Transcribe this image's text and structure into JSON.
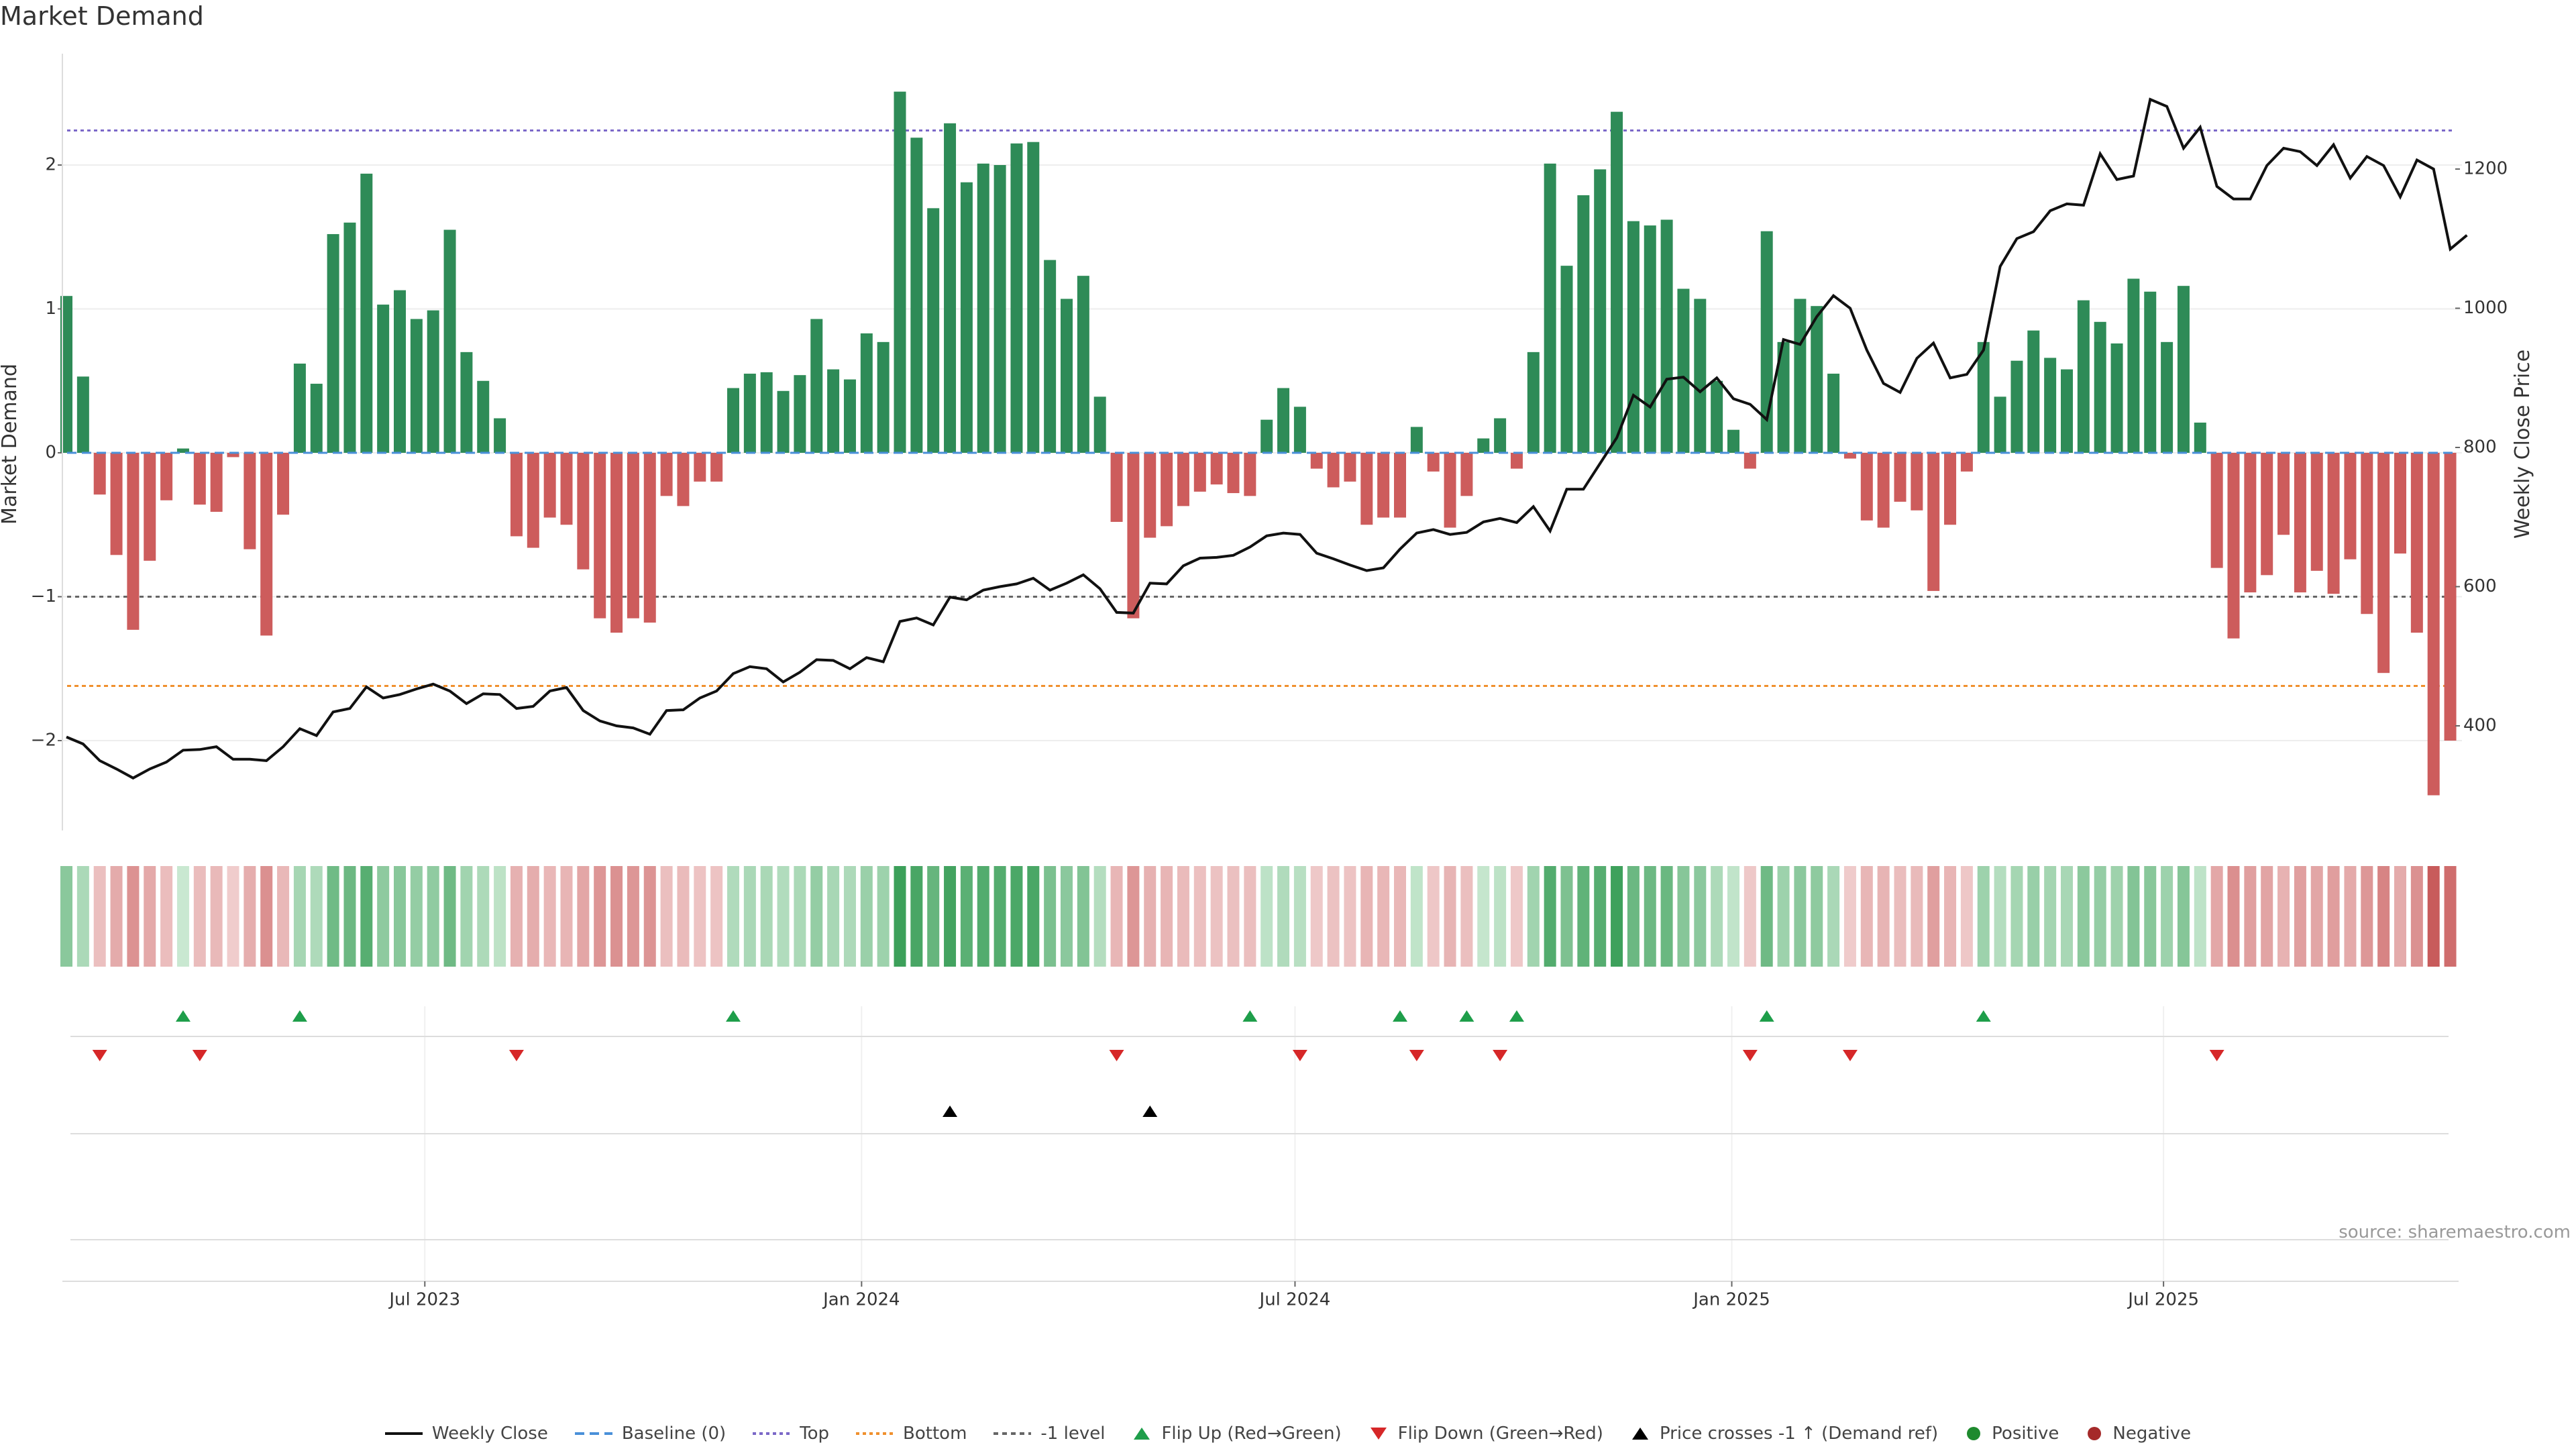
{
  "title": "Market Demand",
  "source_text": "source: sharemaestro.com",
  "colors": {
    "positive_bar": "#2e8b57",
    "negative_bar": "#cd5c5c",
    "price_line": "#111111",
    "top_line": "#7b68c8",
    "bottom_line": "#f0902e",
    "minus1_line": "#666666",
    "baseline": "#4a90d9",
    "flip_up": "#1e9e4a",
    "flip_down": "#d62728",
    "cross_marker": "#000000",
    "grid": "#eeeeee"
  },
  "chart_data": {
    "type": "bar",
    "title": "Market Demand",
    "ylabel": "Market Demand",
    "y2label": "Weekly Close Price",
    "ylim": [
      -2.6,
      2.7
    ],
    "y2lim": [
      290,
      1330
    ],
    "yticks": [
      2,
      1,
      0,
      -1,
      -2
    ],
    "ytick_labels": [
      "2",
      "1",
      "0",
      "−1",
      "−2"
    ],
    "y2ticks": [
      1200,
      1000,
      800,
      600,
      400
    ],
    "y2tick_labels": [
      "1200",
      "1000",
      "800",
      "600",
      "400"
    ],
    "x_tick_labels": [
      "Jul 2023",
      "Jan 2024",
      "Jul 2024",
      "Jan 2025",
      "Jul 2025"
    ],
    "x_tick_weeks": [
      21.5,
      47.7,
      73.7,
      99.9,
      125.8
    ],
    "reference_lines": {
      "top": 2.24,
      "bottom": -1.62,
      "minus1": -1.0,
      "baseline": 0
    },
    "demand": [
      1.09,
      0.53,
      -0.29,
      -0.71,
      -1.23,
      -0.75,
      -0.33,
      0.03,
      -0.36,
      -0.41,
      -0.03,
      -0.67,
      -1.27,
      -0.43,
      0.62,
      0.48,
      1.52,
      1.6,
      1.94,
      1.03,
      1.13,
      0.93,
      0.99,
      1.55,
      0.7,
      0.5,
      0.24,
      -0.58,
      -0.66,
      -0.45,
      -0.5,
      -0.81,
      -1.15,
      -1.25,
      -1.15,
      -1.18,
      -0.3,
      -0.37,
      -0.2,
      -0.2,
      0.45,
      0.55,
      0.56,
      0.43,
      0.54,
      0.93,
      0.58,
      0.51,
      0.83,
      0.77,
      2.51,
      2.19,
      1.7,
      2.29,
      1.88,
      2.01,
      2.0,
      2.15,
      2.16,
      1.34,
      1.07,
      1.23,
      0.39,
      -0.48,
      -1.15,
      -0.59,
      -0.51,
      -0.37,
      -0.27,
      -0.22,
      -0.28,
      -0.3,
      0.23,
      0.45,
      0.32,
      -0.11,
      -0.24,
      -0.2,
      -0.5,
      -0.45,
      -0.45,
      0.18,
      -0.13,
      -0.52,
      -0.3,
      0.1,
      0.24,
      -0.11,
      0.7,
      2.01,
      1.3,
      1.79,
      1.97,
      2.37,
      1.61,
      1.58,
      1.62,
      1.14,
      1.07,
      0.5,
      0.16,
      -0.11,
      1.54,
      0.77,
      1.07,
      1.02,
      0.55,
      -0.04,
      -0.47,
      -0.52,
      -0.34,
      -0.4,
      -0.96,
      -0.5,
      -0.13,
      0.77,
      0.39,
      0.64,
      0.85,
      0.66,
      0.58,
      1.06,
      0.91,
      0.76,
      1.21,
      1.12,
      0.77,
      1.16,
      0.21,
      -0.8,
      -1.29,
      -0.97,
      -0.85,
      -0.57,
      -0.97,
      -0.82,
      -0.98,
      -0.74,
      -1.12,
      -1.53,
      -0.7,
      -1.25,
      -2.38,
      -2.0
    ],
    "price": [
      {
        "week": 0,
        "close": 384
      },
      {
        "week": 1,
        "close": 374
      },
      {
        "week": 2,
        "close": 350
      },
      {
        "week": 3,
        "close": 338
      },
      {
        "week": 4,
        "close": 325
      },
      {
        "week": 5,
        "close": 338
      },
      {
        "week": 6,
        "close": 348
      },
      {
        "week": 7,
        "close": 365
      },
      {
        "week": 8,
        "close": 366
      },
      {
        "week": 9,
        "close": 370
      },
      {
        "week": 10,
        "close": 352
      },
      {
        "week": 11,
        "close": 352
      },
      {
        "week": 12,
        "close": 350
      },
      {
        "week": 13,
        "close": 370
      },
      {
        "week": 14,
        "close": 396
      },
      {
        "week": 15,
        "close": 386
      },
      {
        "week": 16,
        "close": 420
      },
      {
        "week": 17,
        "close": 425
      },
      {
        "week": 18,
        "close": 456
      },
      {
        "week": 19,
        "close": 440
      },
      {
        "week": 20,
        "close": 445
      },
      {
        "week": 21,
        "close": 453
      },
      {
        "week": 22,
        "close": 460
      },
      {
        "week": 23,
        "close": 450
      },
      {
        "week": 24,
        "close": 432
      },
      {
        "week": 25,
        "close": 446
      },
      {
        "week": 26,
        "close": 445
      },
      {
        "week": 27,
        "close": 425
      },
      {
        "week": 28,
        "close": 428
      },
      {
        "week": 29,
        "close": 450
      },
      {
        "week": 30,
        "close": 455
      },
      {
        "week": 31,
        "close": 422
      },
      {
        "week": 32,
        "close": 407
      },
      {
        "week": 33,
        "close": 400
      },
      {
        "week": 34,
        "close": 397
      },
      {
        "week": 35,
        "close": 388
      },
      {
        "week": 36,
        "close": 422
      },
      {
        "week": 37,
        "close": 423
      },
      {
        "week": 38,
        "close": 440
      },
      {
        "week": 39,
        "close": 450
      },
      {
        "week": 40,
        "close": 475
      },
      {
        "week": 41,
        "close": 485
      },
      {
        "week": 42,
        "close": 482
      },
      {
        "week": 43,
        "close": 463
      },
      {
        "week": 44,
        "close": 477
      },
      {
        "week": 45,
        "close": 495
      },
      {
        "week": 46,
        "close": 494
      },
      {
        "week": 47,
        "close": 482
      },
      {
        "week": 48,
        "close": 498
      },
      {
        "week": 49,
        "close": 492
      },
      {
        "week": 50,
        "close": 550
      },
      {
        "week": 51,
        "close": 555
      },
      {
        "week": 52,
        "close": 545
      },
      {
        "week": 53,
        "close": 585
      },
      {
        "week": 54,
        "close": 581
      },
      {
        "week": 55,
        "close": 595
      },
      {
        "week": 56,
        "close": 600
      },
      {
        "week": 57,
        "close": 604
      },
      {
        "week": 58,
        "close": 612
      },
      {
        "week": 59,
        "close": 595
      },
      {
        "week": 60,
        "close": 605
      },
      {
        "week": 61,
        "close": 617
      },
      {
        "week": 62,
        "close": 597
      },
      {
        "week": 63,
        "close": 563
      },
      {
        "week": 64,
        "close": 562
      },
      {
        "week": 65,
        "close": 605
      },
      {
        "week": 66,
        "close": 604
      },
      {
        "week": 67,
        "close": 630
      },
      {
        "week": 68,
        "close": 641
      },
      {
        "week": 69,
        "close": 642
      },
      {
        "week": 70,
        "close": 645
      },
      {
        "week": 71,
        "close": 657
      },
      {
        "week": 72,
        "close": 673
      },
      {
        "week": 73,
        "close": 677
      },
      {
        "week": 74,
        "close": 675
      },
      {
        "week": 75,
        "close": 648
      },
      {
        "week": 76,
        "close": 640
      },
      {
        "week": 77,
        "close": 631
      },
      {
        "week": 78,
        "close": 623
      },
      {
        "week": 79,
        "close": 627
      },
      {
        "week": 80,
        "close": 654
      },
      {
        "week": 81,
        "close": 677
      },
      {
        "week": 82,
        "close": 682
      },
      {
        "week": 83,
        "close": 675
      },
      {
        "week": 84,
        "close": 678
      },
      {
        "week": 85,
        "close": 693
      },
      {
        "week": 86,
        "close": 698
      },
      {
        "week": 87,
        "close": 692
      },
      {
        "week": 88,
        "close": 715
      },
      {
        "week": 89,
        "close": 680
      },
      {
        "week": 90,
        "close": 740
      },
      {
        "week": 91,
        "close": 740
      },
      {
        "week": 92,
        "close": 777
      },
      {
        "week": 93,
        "close": 814
      },
      {
        "week": 94,
        "close": 875
      },
      {
        "week": 95,
        "close": 858
      },
      {
        "week": 96,
        "close": 898
      },
      {
        "week": 97,
        "close": 901
      },
      {
        "week": 98,
        "close": 880
      },
      {
        "week": 99,
        "close": 900
      },
      {
        "week": 100,
        "close": 870
      },
      {
        "week": 101,
        "close": 862
      },
      {
        "week": 102,
        "close": 840
      },
      {
        "week": 103,
        "close": 955
      },
      {
        "week": 104,
        "close": 948
      },
      {
        "week": 105,
        "close": 988
      },
      {
        "week": 106,
        "close": 1018
      },
      {
        "week": 107,
        "close": 1000
      },
      {
        "week": 108,
        "close": 940
      },
      {
        "week": 109,
        "close": 892
      },
      {
        "week": 110,
        "close": 879
      },
      {
        "week": 111,
        "close": 928
      },
      {
        "week": 112,
        "close": 950
      },
      {
        "week": 113,
        "close": 900
      },
      {
        "week": 114,
        "close": 905
      },
      {
        "week": 115,
        "close": 940
      },
      {
        "week": 116,
        "close": 1060
      },
      {
        "week": 117,
        "close": 1100
      },
      {
        "week": 118,
        "close": 1110
      },
      {
        "week": 119,
        "close": 1140
      },
      {
        "week": 120,
        "close": 1150
      },
      {
        "week": 121,
        "close": 1148
      },
      {
        "week": 122,
        "close": 1222
      },
      {
        "week": 123,
        "close": 1185
      },
      {
        "week": 124,
        "close": 1190
      },
      {
        "week": 125,
        "close": 1300
      },
      {
        "week": 126,
        "close": 1290
      },
      {
        "week": 127,
        "close": 1230
      },
      {
        "week": 128,
        "close": 1260
      },
      {
        "week": 129,
        "close": 1175
      },
      {
        "week": 130,
        "close": 1157
      },
      {
        "week": 131,
        "close": 1157
      },
      {
        "week": 132,
        "close": 1205
      },
      {
        "week": 133,
        "close": 1230
      },
      {
        "week": 134,
        "close": 1225
      },
      {
        "week": 135,
        "close": 1205
      },
      {
        "week": 136,
        "close": 1235
      },
      {
        "week": 137,
        "close": 1187
      },
      {
        "week": 138,
        "close": 1218
      },
      {
        "week": 139,
        "close": 1205
      },
      {
        "week": 140,
        "close": 1160
      },
      {
        "week": 141,
        "close": 1213
      },
      {
        "week": 142,
        "close": 1200
      },
      {
        "week": 143,
        "close": 1085
      },
      {
        "week": 144,
        "close": 1105
      }
    ],
    "flip_up_weeks": [
      7,
      14,
      40,
      71,
      80,
      84,
      87,
      102,
      115
    ],
    "flip_down_weeks": [
      2,
      8,
      27,
      63,
      74,
      81,
      86,
      101,
      107,
      129
    ],
    "price_cross_weeks": [
      53,
      65
    ],
    "legend": [
      "Weekly Close",
      "Baseline (0)",
      "Top",
      "Bottom",
      "-1 level",
      "Flip Up (Red→Green)",
      "Flip Down (Green→Red)",
      "Price crosses -1 ↑ (Demand ref)",
      "Positive",
      "Negative"
    ]
  }
}
